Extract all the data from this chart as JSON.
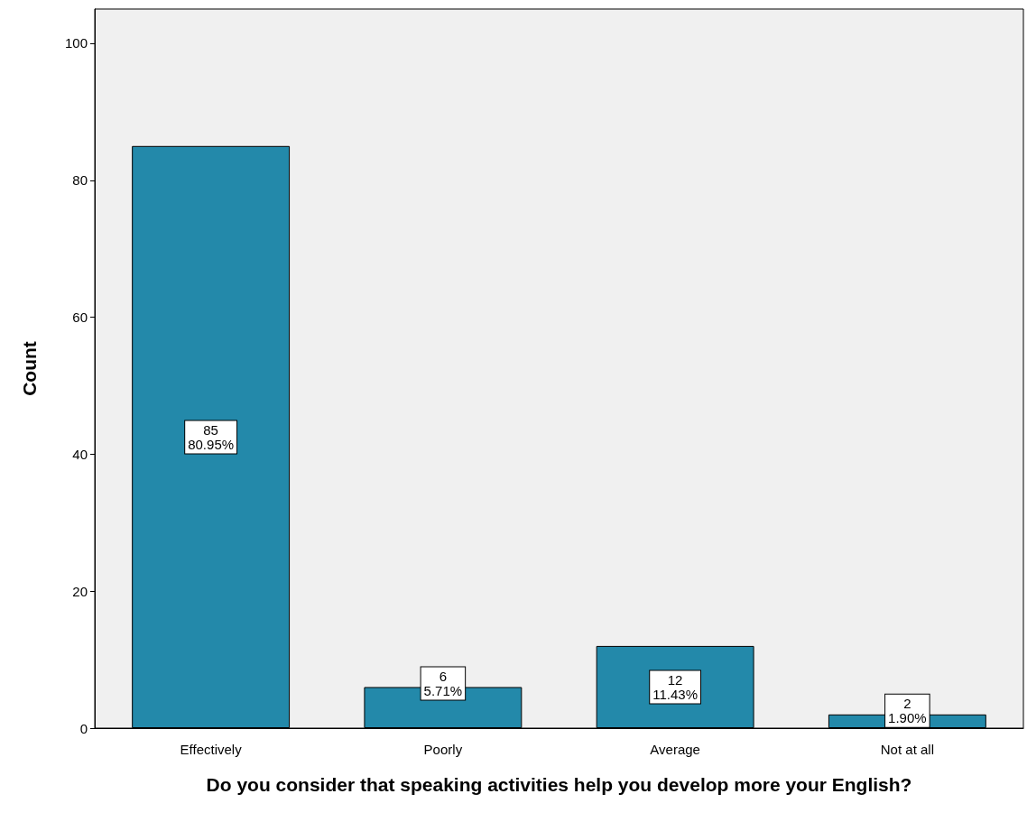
{
  "chart_data": {
    "type": "bar",
    "xlabel": "Do you consider that speaking activities help you develop more your English?",
    "ylabel": "Count",
    "categories": [
      "Effectively",
      "Poorly",
      "Average",
      "Not at all"
    ],
    "values": [
      85,
      6,
      12,
      2
    ],
    "value_labels": [
      "85\n80.95%",
      "6\n5.71%",
      "12\n11.43%",
      "2\n1.90%"
    ],
    "color": "#2389aa",
    "ylim": [
      0,
      105
    ],
    "yticks": [
      0,
      20,
      40,
      60,
      80,
      100
    ],
    "grid": false
  }
}
